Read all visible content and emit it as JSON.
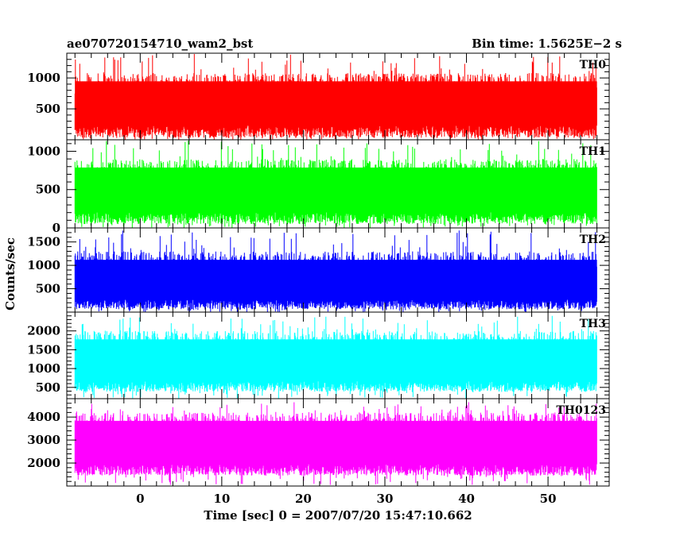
{
  "chart_data": {
    "type": "line",
    "title_left": "ae070720154710_wam2_bst",
    "title_right": "Bin time: 1.5625E−2 s",
    "xlabel": "Time [sec] 0 = 2007/07/20 15:47:10.662",
    "ylabel": "Counts/sec",
    "xlim": [
      -9,
      57.5
    ],
    "x_data_range": [
      -8,
      56
    ],
    "bin_time": 0.015625,
    "x_ticks": [
      0,
      10,
      20,
      30,
      40,
      50
    ],
    "x_tick_labels": [
      "0",
      "10",
      "20",
      "30",
      "40",
      "50"
    ],
    "x_minor_step": 2,
    "grid": false,
    "panels": [
      {
        "name": "TH0",
        "color": "#ff0000",
        "ylim": [
          0,
          1400
        ],
        "y_ticks": [
          500,
          1000
        ],
        "y_tick_labels": [
          "500",
          "1000"
        ],
        "y_minor_step": 100,
        "envelope": {
          "base_low": 30,
          "base_high": 1080,
          "peak_low": 0,
          "peak_high": 1400,
          "median": 600
        }
      },
      {
        "name": "TH1",
        "color": "#00ff00",
        "ylim": [
          0,
          1150
        ],
        "y_ticks": [
          0,
          500,
          1000
        ],
        "y_tick_labels": [
          "0",
          "500",
          "1000"
        ],
        "y_minor_step": 100,
        "envelope": {
          "base_low": 50,
          "base_high": 900,
          "peak_low": 0,
          "peak_high": 1150,
          "median": 500
        }
      },
      {
        "name": "TH2",
        "color": "#0000ff",
        "ylim": [
          0,
          1800
        ],
        "y_ticks": [
          500,
          1000,
          1500
        ],
        "y_tick_labels": [
          "500",
          "1000",
          "1500"
        ],
        "y_minor_step": 100,
        "envelope": {
          "base_low": 60,
          "base_high": 1300,
          "peak_low": 0,
          "peak_high": 1750,
          "median": 650
        }
      },
      {
        "name": "TH3",
        "color": "#00ffff",
        "ylim": [
          200,
          2500
        ],
        "y_ticks": [
          500,
          1000,
          1500,
          2000
        ],
        "y_tick_labels": [
          "500",
          "1000",
          "1500",
          "2000"
        ],
        "y_minor_step": 100,
        "envelope": {
          "base_low": 380,
          "base_high": 2000,
          "peak_low": 200,
          "peak_high": 2400,
          "median": 1200
        }
      },
      {
        "name": "TH0123",
        "color": "#ff00ff",
        "ylim": [
          1000,
          4800
        ],
        "y_ticks": [
          2000,
          3000,
          4000
        ],
        "y_tick_labels": [
          "2000",
          "3000",
          "4000"
        ],
        "y_minor_step": 200,
        "envelope": {
          "base_low": 1450,
          "base_high": 4200,
          "peak_low": 1050,
          "peak_high": 4650,
          "median": 2900
        }
      }
    ]
  }
}
